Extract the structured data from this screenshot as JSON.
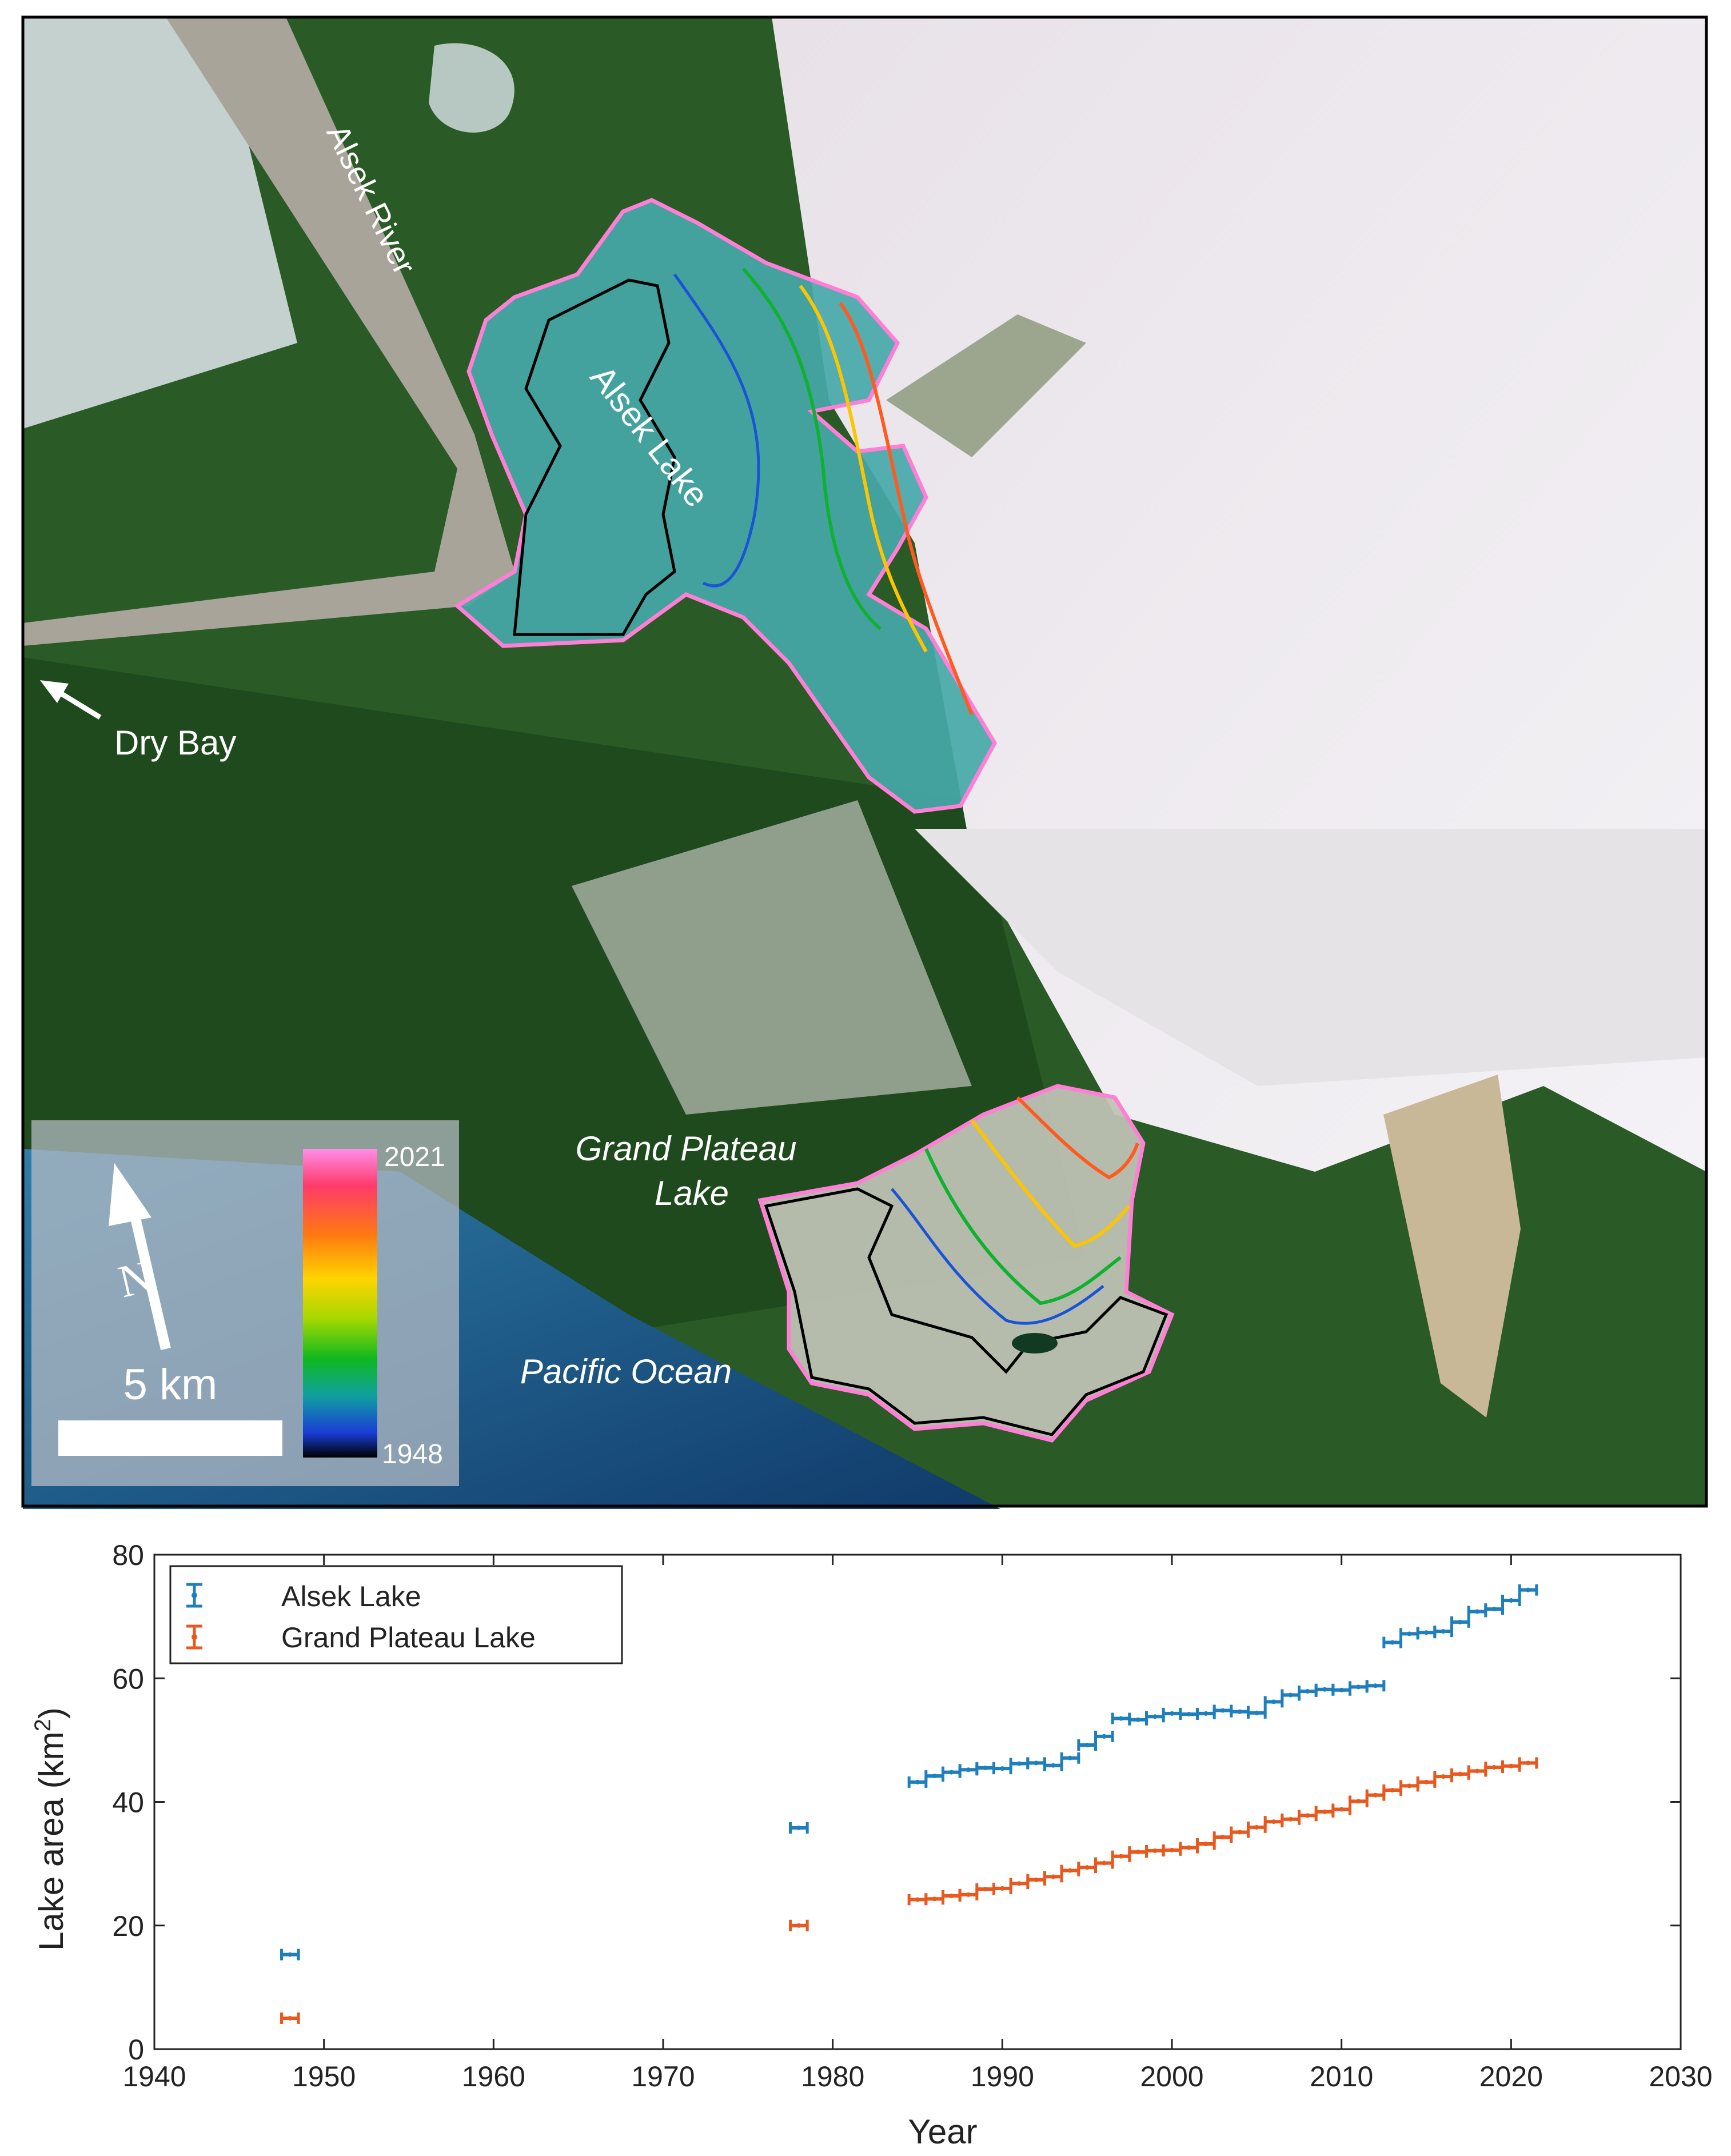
{
  "map": {
    "labels": {
      "alsek_river": "Alsek River",
      "alsek_lake": "Alsek Lake",
      "dry_bay": "Dry Bay",
      "grand_plateau_lake": "Grand Plateau Lake",
      "grand_plateau_line1": "Grand Plateau",
      "grand_plateau_line2": "Lake",
      "pacific_ocean": "Pacific Ocean"
    },
    "scale_bar": "5 km",
    "north_arrow": "N",
    "colorbar": {
      "top_label": "2021",
      "bottom_label": "1948"
    }
  },
  "chart_data": {
    "type": "scatter",
    "xlabel": "Year",
    "ylabel": "Lake area (km²)",
    "ylabel_main": "Lake area (km",
    "ylabel_sup": "2",
    "ylabel_close": ")",
    "xlim": [
      1940,
      2030
    ],
    "ylim": [
      0,
      80
    ],
    "xticks": [
      1940,
      1950,
      1960,
      1970,
      1980,
      1990,
      2000,
      2010,
      2020,
      2030
    ],
    "yticks": [
      0,
      20,
      40,
      60,
      80
    ],
    "legend_position": "top-left",
    "colors": {
      "alsek": "#1f7fbd",
      "grand_plateau": "#e8591f"
    },
    "series": [
      {
        "name": "Alsek Lake",
        "x": [
          1948,
          1978,
          1985,
          1986,
          1987,
          1988,
          1989,
          1990,
          1991,
          1992,
          1993,
          1994,
          1995,
          1996,
          1997,
          1998,
          1999,
          2000,
          2001,
          2002,
          2003,
          2004,
          2005,
          2006,
          2007,
          2008,
          2009,
          2010,
          2011,
          2012,
          2013,
          2014,
          2015,
          2016,
          2017,
          2018,
          2019,
          2020,
          2021
        ],
        "y": [
          15.3,
          35.8,
          43.2,
          44.2,
          44.8,
          45.2,
          45.5,
          45.4,
          46.2,
          46.3,
          45.9,
          47.1,
          49.2,
          50.6,
          53.5,
          53.3,
          53.8,
          54.3,
          54.2,
          54.3,
          54.8,
          54.6,
          54.4,
          56.2,
          57.3,
          57.9,
          58.2,
          58.1,
          58.6,
          58.8,
          65.8,
          67.2,
          67.4,
          67.6,
          69.1,
          70.8,
          71.2,
          72.6,
          74.3
        ]
      },
      {
        "name": "Grand Plateau Lake",
        "x": [
          1948,
          1978,
          1985,
          1986,
          1987,
          1988,
          1989,
          1990,
          1991,
          1992,
          1993,
          1994,
          1995,
          1996,
          1997,
          1998,
          1999,
          2000,
          2001,
          2002,
          2003,
          2004,
          2005,
          2006,
          2007,
          2008,
          2009,
          2010,
          2011,
          2012,
          2013,
          2014,
          2015,
          2016,
          2017,
          2018,
          2019,
          2020,
          2021
        ],
        "y": [
          5.0,
          20.0,
          24.2,
          24.3,
          24.8,
          25.0,
          25.9,
          26.0,
          26.8,
          27.4,
          27.9,
          28.9,
          29.4,
          30.1,
          31.2,
          31.9,
          32.1,
          32.2,
          32.6,
          33.2,
          34.3,
          35.1,
          35.9,
          36.8,
          37.2,
          37.8,
          38.4,
          38.8,
          40.1,
          41.1,
          41.9,
          42.6,
          43.2,
          44.1,
          44.5,
          45.0,
          45.6,
          45.8,
          46.3
        ]
      }
    ]
  }
}
